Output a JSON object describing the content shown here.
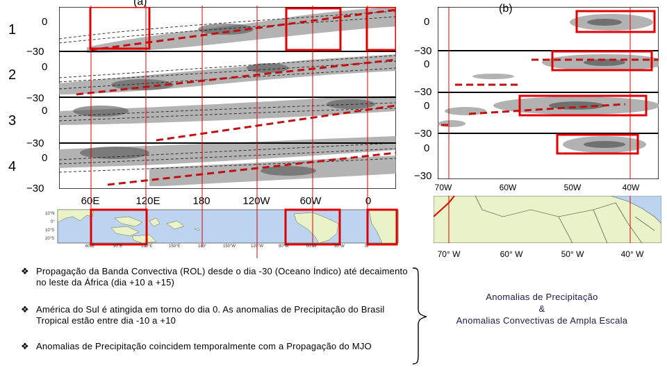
{
  "panel_a": {
    "label": "(a)",
    "rows": [
      "1",
      "2",
      "3",
      "4"
    ],
    "ticks_zero": "0",
    "ticks_neg": "−30",
    "lon_labels": [
      "60E",
      "120E",
      "180",
      "120W",
      "60W",
      "0"
    ],
    "map_lon_labels": [
      "60°E",
      "90°E",
      "120°E",
      "150°E",
      "180°",
      "150°W",
      "120°W",
      "90°W",
      "60°W",
      "30°W",
      "0°"
    ],
    "map_lat_labels": [
      "10°N",
      "0°",
      "10°S",
      "20°S"
    ]
  },
  "panel_b": {
    "label": "(b)",
    "ticks_zero": "0",
    "ticks_neg": "−30",
    "lon_labels": [
      "70W",
      "60W",
      "50W",
      "40W"
    ],
    "map_lon_labels": [
      "70° W",
      "60° W",
      "50° W",
      "40° W"
    ]
  },
  "bullets": [
    {
      "symbol": "❖",
      "text": "Propagação da Banda Convectiva (ROL) desde o dia -30 (Oceano Índico) até decaimento no leste da África (dia +10 a +15)"
    },
    {
      "symbol": "❖",
      "text": "América do Sul é atingida em torno do dia 0. As anomalias de Precipitação do Brasil Tropical estão entre dia -10 a +10"
    },
    {
      "symbol": "❖",
      "text": "Anomalias de Precipitação coincidem temporalmente com a Propagação do MJO"
    }
  ],
  "side_note": {
    "line1": "Anomalias de Precipitação",
    "line2": "&",
    "line3": "Anomalias Convectivas de Ampla Escala"
  },
  "colors": {
    "highlight": "#e00000",
    "trend": "#c01010",
    "ocean": "#bcd4f0",
    "land": "#eaf2c8"
  }
}
